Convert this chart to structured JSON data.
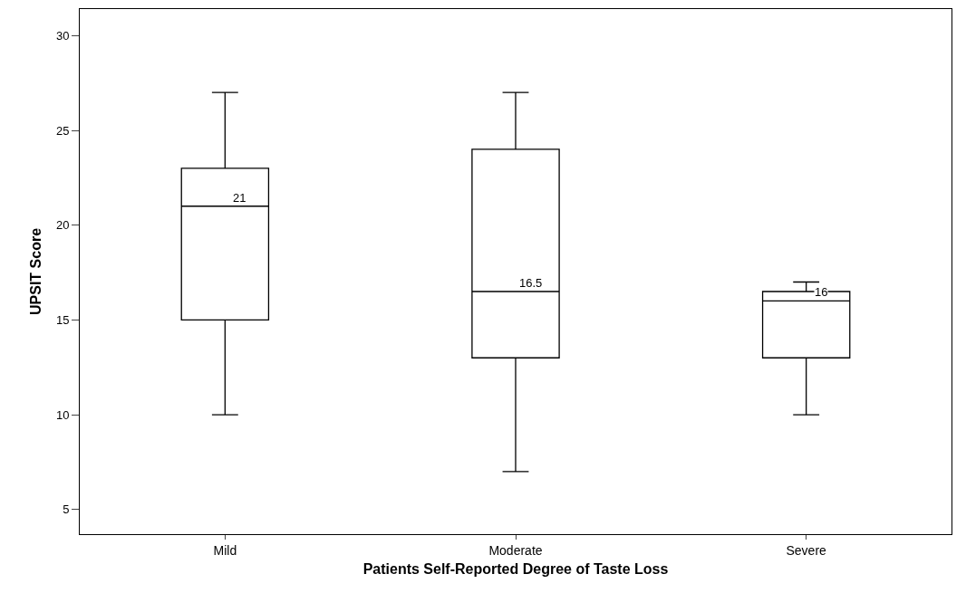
{
  "chart_data": {
    "type": "box",
    "xlabel": "Patients Self-Reported Degree of Taste Loss",
    "ylabel": "UPSIT Score",
    "categories": [
      "Mild",
      "Moderate",
      "Severe"
    ],
    "boxes": [
      {
        "low": 10,
        "q1": 15,
        "median": 21,
        "q3": 23,
        "high": 27
      },
      {
        "low": 7,
        "q1": 13,
        "median": 16.5,
        "q3": 24,
        "high": 27
      },
      {
        "low": 10,
        "q1": 13,
        "median": 16,
        "q3": 16.5,
        "high": 17
      }
    ],
    "color": "#000000",
    "ylim": [
      3.7,
      31.4
    ],
    "yticks": [
      5,
      10,
      15,
      20,
      25,
      30
    ],
    "grid": false,
    "annotations": [
      {
        "text": "21",
        "x": "Mild",
        "y": 21
      },
      {
        "text": "16.5",
        "x": "Moderate",
        "y": 16.5
      },
      {
        "text": "16",
        "x": "Severe",
        "y": 16
      }
    ]
  }
}
